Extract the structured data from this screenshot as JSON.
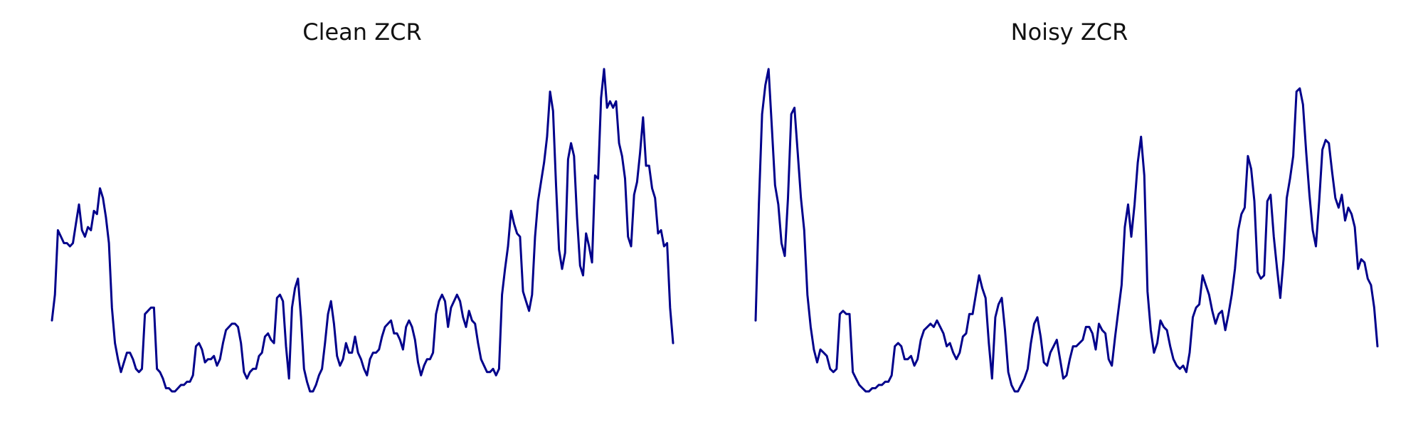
{
  "line_color": "#00008b",
  "chart_data": [
    {
      "type": "line",
      "title": "Clean ZCR",
      "xlabel": "",
      "ylabel": "",
      "ylim": [
        0,
        1
      ],
      "grid": false,
      "axes_visible": false,
      "color": "#00008b",
      "values": [
        0.22,
        0.3,
        0.5,
        0.48,
        0.46,
        0.46,
        0.45,
        0.46,
        0.52,
        0.58,
        0.5,
        0.48,
        0.51,
        0.5,
        0.56,
        0.55,
        0.63,
        0.6,
        0.54,
        0.46,
        0.26,
        0.15,
        0.1,
        0.06,
        0.09,
        0.12,
        0.12,
        0.1,
        0.07,
        0.06,
        0.07,
        0.24,
        0.25,
        0.26,
        0.26,
        0.07,
        0.06,
        0.04,
        0.01,
        0.01,
        0.0,
        0.0,
        0.01,
        0.02,
        0.02,
        0.03,
        0.03,
        0.05,
        0.14,
        0.15,
        0.13,
        0.09,
        0.1,
        0.1,
        0.11,
        0.08,
        0.1,
        0.15,
        0.19,
        0.2,
        0.21,
        0.21,
        0.2,
        0.15,
        0.06,
        0.04,
        0.06,
        0.07,
        0.07,
        0.11,
        0.12,
        0.17,
        0.18,
        0.16,
        0.15,
        0.29,
        0.3,
        0.28,
        0.14,
        0.04,
        0.26,
        0.32,
        0.35,
        0.23,
        0.07,
        0.03,
        0.0,
        0.0,
        0.02,
        0.05,
        0.07,
        0.15,
        0.24,
        0.28,
        0.21,
        0.11,
        0.08,
        0.1,
        0.15,
        0.12,
        0.12,
        0.17,
        0.12,
        0.1,
        0.07,
        0.05,
        0.1,
        0.12,
        0.12,
        0.13,
        0.17,
        0.2,
        0.21,
        0.22,
        0.18,
        0.18,
        0.16,
        0.13,
        0.2,
        0.22,
        0.2,
        0.16,
        0.09,
        0.05,
        0.08,
        0.1,
        0.1,
        0.12,
        0.24,
        0.28,
        0.3,
        0.28,
        0.2,
        0.26,
        0.28,
        0.3,
        0.28,
        0.23,
        0.2,
        0.25,
        0.22,
        0.21,
        0.15,
        0.1,
        0.08,
        0.06,
        0.06,
        0.07,
        0.05,
        0.07,
        0.3,
        0.38,
        0.45,
        0.56,
        0.52,
        0.49,
        0.48,
        0.31,
        0.28,
        0.25,
        0.3,
        0.48,
        0.59,
        0.65,
        0.71,
        0.79,
        0.93,
        0.87,
        0.64,
        0.44,
        0.38,
        0.43,
        0.72,
        0.77,
        0.73,
        0.54,
        0.39,
        0.36,
        0.49,
        0.45,
        0.4,
        0.67,
        0.66,
        0.91,
        1.0,
        0.88,
        0.9,
        0.88,
        0.9,
        0.77,
        0.73,
        0.66,
        0.48,
        0.45,
        0.61,
        0.65,
        0.74,
        0.85,
        0.7,
        0.7,
        0.63,
        0.6,
        0.49,
        0.5,
        0.45,
        0.46,
        0.26,
        0.15
      ]
    },
    {
      "type": "line",
      "title": "Noisy ZCR",
      "xlabel": "",
      "ylabel": "",
      "ylim": [
        0,
        1
      ],
      "grid": false,
      "axes_visible": false,
      "color": "#00008b",
      "values": [
        0.22,
        0.58,
        0.86,
        0.95,
        1.0,
        0.82,
        0.64,
        0.58,
        0.46,
        0.42,
        0.6,
        0.86,
        0.88,
        0.74,
        0.6,
        0.5,
        0.3,
        0.2,
        0.13,
        0.09,
        0.13,
        0.12,
        0.11,
        0.07,
        0.06,
        0.07,
        0.24,
        0.25,
        0.24,
        0.24,
        0.06,
        0.04,
        0.02,
        0.01,
        0.0,
        0.0,
        0.01,
        0.01,
        0.02,
        0.02,
        0.03,
        0.03,
        0.05,
        0.14,
        0.15,
        0.14,
        0.1,
        0.1,
        0.11,
        0.08,
        0.1,
        0.16,
        0.19,
        0.2,
        0.21,
        0.2,
        0.22,
        0.2,
        0.18,
        0.14,
        0.15,
        0.12,
        0.1,
        0.12,
        0.17,
        0.18,
        0.24,
        0.24,
        0.3,
        0.36,
        0.32,
        0.29,
        0.15,
        0.04,
        0.23,
        0.27,
        0.29,
        0.19,
        0.06,
        0.02,
        0.0,
        0.0,
        0.02,
        0.04,
        0.07,
        0.15,
        0.21,
        0.23,
        0.17,
        0.09,
        0.08,
        0.12,
        0.14,
        0.16,
        0.1,
        0.04,
        0.05,
        0.1,
        0.14,
        0.14,
        0.15,
        0.16,
        0.2,
        0.2,
        0.18,
        0.13,
        0.21,
        0.19,
        0.18,
        0.1,
        0.08,
        0.17,
        0.25,
        0.33,
        0.51,
        0.58,
        0.48,
        0.58,
        0.71,
        0.79,
        0.67,
        0.31,
        0.19,
        0.12,
        0.15,
        0.22,
        0.2,
        0.19,
        0.14,
        0.1,
        0.08,
        0.07,
        0.08,
        0.06,
        0.12,
        0.23,
        0.26,
        0.27,
        0.36,
        0.33,
        0.3,
        0.25,
        0.21,
        0.24,
        0.25,
        0.19,
        0.24,
        0.3,
        0.38,
        0.5,
        0.55,
        0.57,
        0.73,
        0.69,
        0.59,
        0.37,
        0.35,
        0.36,
        0.59,
        0.61,
        0.48,
        0.38,
        0.29,
        0.41,
        0.6,
        0.66,
        0.73,
        0.93,
        0.94,
        0.89,
        0.74,
        0.61,
        0.5,
        0.45,
        0.59,
        0.75,
        0.78,
        0.77,
        0.68,
        0.6,
        0.57,
        0.61,
        0.53,
        0.57,
        0.55,
        0.51,
        0.38,
        0.41,
        0.4,
        0.35,
        0.33,
        0.26,
        0.14
      ]
    }
  ]
}
